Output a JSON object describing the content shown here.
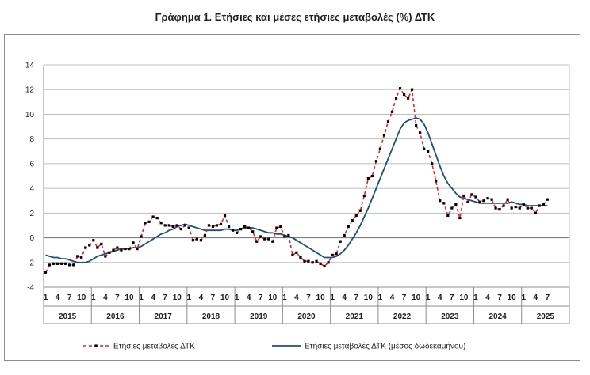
{
  "title": "Γράφημα 1. Ετήσιες και μέσες ετήσιες μεταβολές (%) ΔΤΚ",
  "chart_data": {
    "type": "line",
    "ylim": [
      -4,
      14
    ],
    "yticks": [
      -4,
      -2,
      0,
      2,
      4,
      6,
      8,
      10,
      12,
      14
    ],
    "grid": true,
    "legend_position": "bottom",
    "month_labels": [
      "1",
      "4",
      "7",
      "10"
    ],
    "years": [
      "2015",
      "2016",
      "2017",
      "2018",
      "2019",
      "2020",
      "2021",
      "2022",
      "2023",
      "2024",
      "2025"
    ],
    "start": "2015-01",
    "end": "2025-07",
    "series": [
      {
        "name": "Ετήσιες μεταβολές ΔΤΚ",
        "color": "#e0282b",
        "style": "dashed-markers",
        "values": [
          -2.8,
          -2.2,
          -2.1,
          -2.1,
          -2.1,
          -2.1,
          -2.2,
          -2.2,
          -1.5,
          -1.6,
          -0.8,
          -0.6,
          -0.2,
          -0.8,
          -0.5,
          -1.5,
          -1.2,
          -1.0,
          -0.8,
          -1.0,
          -0.9,
          -0.9,
          -0.4,
          -0.9,
          0.1,
          1.2,
          1.3,
          1.7,
          1.6,
          1.2,
          1.0,
          1.0,
          0.9,
          1.0,
          0.7,
          1.0,
          0.8,
          -0.2,
          -0.1,
          -0.2,
          0.2,
          1.0,
          0.9,
          1.0,
          1.1,
          1.8,
          0.9,
          0.6,
          0.4,
          0.7,
          0.9,
          0.8,
          0.5,
          -0.3,
          0.1,
          -0.1,
          -0.1,
          -0.3,
          0.8,
          0.9,
          0.1,
          0.2,
          -1.4,
          -1.2,
          -1.6,
          -1.9,
          -1.9,
          -2.0,
          -1.9,
          -2.1,
          -2.3,
          -2.0,
          -1.4,
          -1.3,
          -0.3,
          0.2,
          0.9,
          1.4,
          1.8,
          2.2,
          3.4,
          4.8,
          5.0,
          6.2,
          7.2,
          8.3,
          9.4,
          10.2,
          11.3,
          12.1,
          11.6,
          11.3,
          12.0,
          9.1,
          8.5,
          7.2,
          7.0,
          6.0,
          4.6,
          3.0,
          2.8,
          1.8,
          2.4,
          2.7,
          1.6,
          3.4,
          2.9,
          3.5,
          3.3,
          2.9,
          3.0,
          3.2,
          3.1,
          2.4,
          2.3,
          2.6,
          3.1,
          2.4,
          2.5,
          2.4,
          2.7,
          2.4,
          2.4,
          2.0,
          2.6,
          2.7,
          3.1
        ]
      },
      {
        "name": "Ετήσιες μεταβολές ΔΤΚ (μέσος δωδεκαμήνου)",
        "color": "#1f4e79",
        "style": "solid",
        "values": [
          -1.4,
          -1.5,
          -1.6,
          -1.6,
          -1.7,
          -1.7,
          -1.8,
          -1.9,
          -2.0,
          -2.0,
          -2.0,
          -1.9,
          -1.7,
          -1.5,
          -1.4,
          -1.3,
          -1.2,
          -1.1,
          -1.0,
          -0.9,
          -0.9,
          -0.9,
          -0.8,
          -0.8,
          -0.7,
          -0.5,
          -0.3,
          -0.1,
          0.1,
          0.3,
          0.4,
          0.6,
          0.7,
          0.9,
          1.0,
          1.1,
          1.0,
          0.9,
          0.8,
          0.7,
          0.6,
          0.6,
          0.6,
          0.6,
          0.6,
          0.7,
          0.7,
          0.6,
          0.6,
          0.7,
          0.8,
          0.8,
          0.8,
          0.7,
          0.6,
          0.5,
          0.4,
          0.4,
          0.3,
          0.3,
          0.2,
          0.1,
          0.0,
          -0.2,
          -0.4,
          -0.6,
          -0.8,
          -1.0,
          -1.2,
          -1.4,
          -1.6,
          -1.6,
          -1.6,
          -1.5,
          -1.3,
          -1.0,
          -0.6,
          -0.1,
          0.4,
          1.0,
          1.7,
          2.4,
          3.2,
          4.0,
          4.8,
          5.6,
          6.4,
          7.2,
          8.0,
          8.8,
          9.3,
          9.5,
          9.6,
          9.7,
          9.6,
          9.2,
          8.5,
          7.6,
          6.7,
          5.8,
          5.0,
          4.4,
          4.0,
          3.6,
          3.3,
          3.2,
          3.1,
          3.0,
          2.9,
          2.8,
          2.8,
          2.8,
          2.8,
          2.8,
          2.8,
          2.8,
          2.8,
          2.9,
          2.8,
          2.7,
          2.7,
          2.6,
          2.6,
          2.6,
          2.6,
          2.6,
          2.6
        ]
      }
    ]
  }
}
